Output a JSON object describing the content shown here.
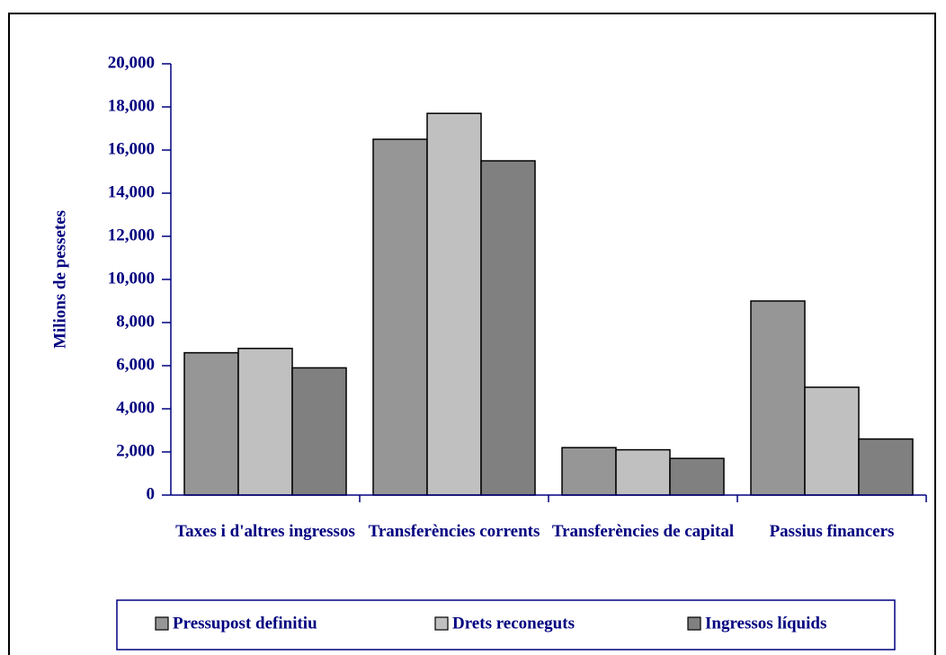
{
  "chart_data": {
    "type": "bar",
    "y_label": "Milions de pessetes",
    "categories": [
      "Taxes i d'altres ingressos",
      "Transferències corrents",
      "Transferències de capital",
      "Passius financers"
    ],
    "series": [
      {
        "name": "Pressupost definitiu",
        "color": "#969696",
        "values": [
          6600,
          16500,
          2200,
          9000
        ]
      },
      {
        "name": "Drets reconeguts",
        "color": "#c0c0c0",
        "values": [
          6800,
          17700,
          2100,
          5000
        ]
      },
      {
        "name": "Ingressos líquids",
        "color": "#808080",
        "values": [
          5900,
          15500,
          1700,
          2600
        ]
      }
    ],
    "ylim": [
      0,
      20000
    ],
    "yticks": [
      {
        "value": 0,
        "label": "0"
      },
      {
        "value": 2000,
        "label": "2,000"
      },
      {
        "value": 4000,
        "label": "4,000"
      },
      {
        "value": 6000,
        "label": "6,000"
      },
      {
        "value": 8000,
        "label": "8,000"
      },
      {
        "value": 10000,
        "label": "10,000"
      },
      {
        "value": 12000,
        "label": "12,000"
      },
      {
        "value": 14000,
        "label": "14,000"
      },
      {
        "value": 16000,
        "label": "16,000"
      },
      {
        "value": 18000,
        "label": "18,000"
      },
      {
        "value": 20000,
        "label": "20,000"
      }
    ],
    "legend": "bottom"
  }
}
